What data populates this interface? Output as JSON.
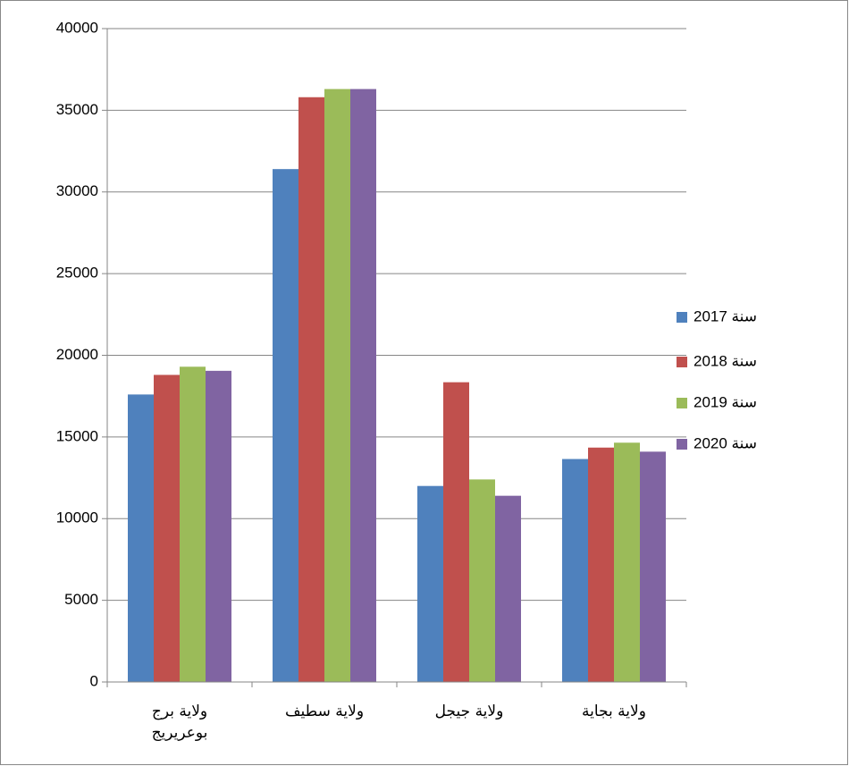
{
  "chart_data": {
    "type": "bar",
    "categories": [
      "ولاية برج بوعريريج",
      "ولاية سطيف",
      "ولاية جيجل",
      "ولاية بجاية"
    ],
    "series": [
      {
        "name": "سنة 2017",
        "color": "#4f81bd",
        "values": [
          17600,
          31400,
          12000,
          13650
        ]
      },
      {
        "name": "سنة 2018",
        "color": "#c0504d",
        "values": [
          18800,
          35800,
          18350,
          14350
        ]
      },
      {
        "name": "سنة 2019",
        "color": "#9bbb59",
        "values": [
          19300,
          36300,
          12400,
          14650
        ]
      },
      {
        "name": "سنة 2020",
        "color": "#8064a2",
        "values": [
          19050,
          36300,
          11400,
          14100
        ]
      }
    ],
    "ylim": [
      0,
      40000
    ],
    "yticks": [
      0,
      5000,
      10000,
      15000,
      20000,
      25000,
      30000,
      35000,
      40000
    ],
    "grid": true,
    "legend": "right"
  }
}
